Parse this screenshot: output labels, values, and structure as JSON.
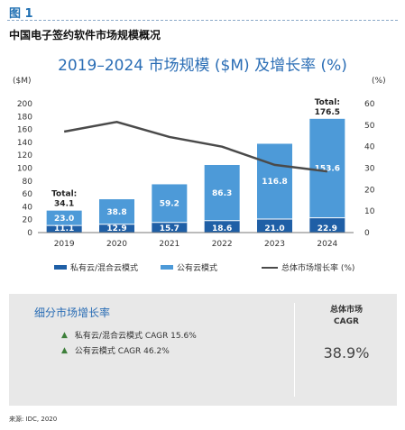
{
  "figure_label": "图 1",
  "figure_title": "中国电子签约软件市场规模概况",
  "chart_data": {
    "type": "bar",
    "title": "2019–2024 市场规模 ($M) 及增长率 (%)",
    "left_unit": "($M)",
    "right_unit": "(%)",
    "categories": [
      "2019",
      "2020",
      "2021",
      "2022",
      "2023",
      "2024"
    ],
    "ylim": [
      0,
      200
    ],
    "yticks": [
      0,
      20,
      40,
      60,
      80,
      100,
      120,
      140,
      160,
      180,
      200
    ],
    "y2lim": [
      0,
      60
    ],
    "y2ticks": [
      0,
      10,
      20,
      30,
      40,
      50,
      60
    ],
    "series": [
      {
        "name": "私有云/混合云模式",
        "type": "bar",
        "stack": "total",
        "color": "#1f5fa6",
        "values": [
          11.1,
          12.9,
          15.7,
          18.6,
          21.0,
          22.9
        ]
      },
      {
        "name": "公有云模式",
        "type": "bar",
        "stack": "total",
        "color": "#4d9ad8",
        "values": [
          23.0,
          38.8,
          59.2,
          86.3,
          116.8,
          153.6
        ]
      },
      {
        "name": "总体市场增长率 (%)",
        "type": "line",
        "axis": "right",
        "color": "#4a4a4a",
        "values": [
          47,
          51.5,
          44.5,
          40,
          31.5,
          28.5
        ]
      }
    ],
    "total_annotations": [
      {
        "category": "2019",
        "label": "Total:",
        "value": "34.1"
      },
      {
        "category": "2024",
        "label": "Total:",
        "value": "176.5"
      }
    ],
    "legend_position": "bottom"
  },
  "growth_panel": {
    "heading": "细分市场增长率",
    "items": [
      {
        "marker": "▲",
        "text": "私有云/混合云模式 CAGR 15.6%"
      },
      {
        "marker": "▲",
        "text": "公有云模式 CAGR 46.2%"
      }
    ],
    "overall_title_line1": "总体市场",
    "overall_title_line2": "CAGR",
    "overall_value": "38.9%"
  },
  "source": "来源: IDC, 2020",
  "colors": {
    "accent": "#2a6db5",
    "dark_bar": "#1f5fa6",
    "light_bar": "#4d9ad8",
    "line": "#4a4a4a",
    "panel_bg": "#e8e8e8",
    "triangle": "#3d7f3a"
  }
}
